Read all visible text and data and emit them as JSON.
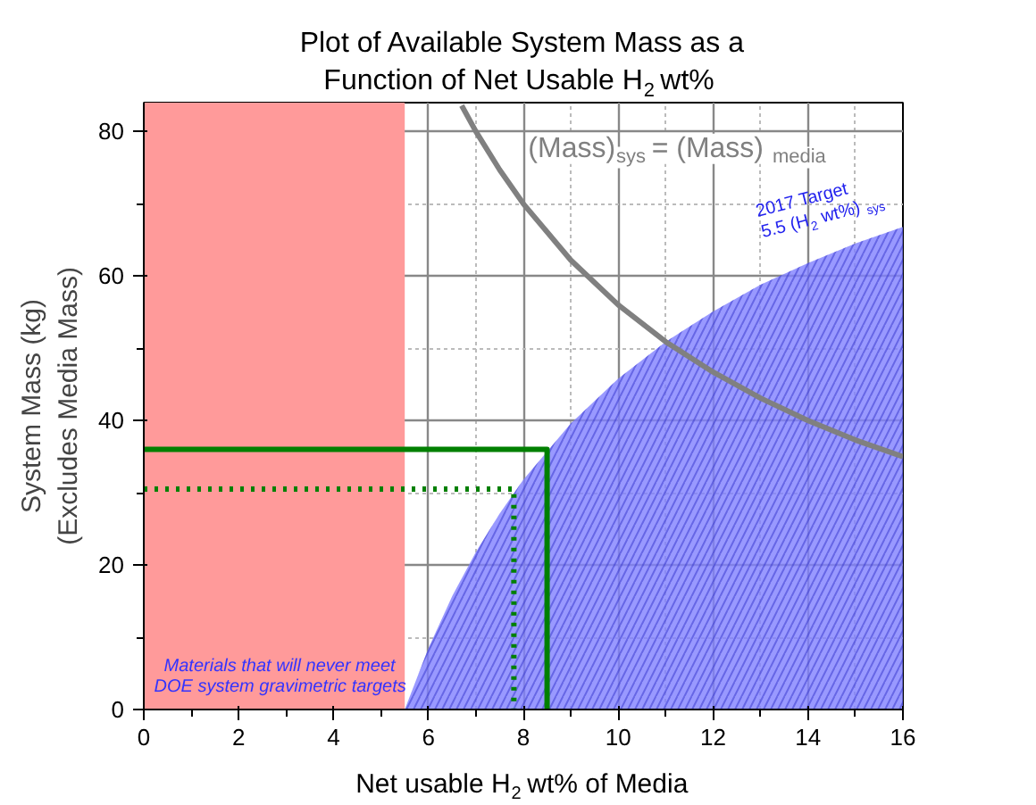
{
  "chart_data": {
    "type": "line",
    "title": "Plot of Available System Mass as a\nFunction of Net Usable H$_{2}$ wt%",
    "xlabel": "Net usable H$_{2}$ wt% of Media",
    "ylabel": "System Mass (kg)\n(Excludes Media Mass)",
    "xlim": [
      0,
      16
    ],
    "ylim": [
      0,
      84
    ],
    "xticks": [
      0,
      2,
      4,
      6,
      8,
      10,
      12,
      14,
      16
    ],
    "yticks": [
      0,
      20,
      40,
      60,
      80
    ],
    "grid": true,
    "series": [
      {
        "name": "(Mass)$_{sys}$ = (Mass)$_{media}$",
        "color": "#808080",
        "x": [
          6.7,
          7,
          7.5,
          8,
          9,
          10,
          11,
          12,
          13,
          14,
          15,
          16
        ],
        "values": [
          83.6,
          80,
          74.7,
          70,
          62.2,
          56,
          50.9,
          46.7,
          43.1,
          40,
          37.3,
          35
        ]
      },
      {
        "name": "2017 Target\n5.5 (H$_{2}$ wt%)$_{sys}$",
        "type": "area",
        "color": "#8080ff",
        "x": [
          5.5,
          6,
          6.5,
          7,
          7.5,
          8,
          9,
          10,
          11,
          12,
          13,
          14,
          15,
          16
        ],
        "values": [
          0,
          8.5,
          15.7,
          21.8,
          27.1,
          31.8,
          39.6,
          45.8,
          50.9,
          55.1,
          58.8,
          61.8,
          64.5,
          66.8
        ]
      },
      {
        "color": "#008000",
        "line_style": "solid",
        "x": [
          0,
          8.5,
          8.5
        ],
        "values": [
          36,
          36,
          0
        ]
      },
      {
        "color": "#008000",
        "line_style": "dotted",
        "x": [
          0,
          7.8,
          7.8
        ],
        "values": [
          30.5,
          30.5,
          0
        ]
      }
    ],
    "bands": [
      {
        "axis": "x",
        "from": 0,
        "to": 5.5,
        "color": "#ff9a9a",
        "label": "Materials that will never meet\nDOE system gravimetric targets"
      }
    ]
  }
}
